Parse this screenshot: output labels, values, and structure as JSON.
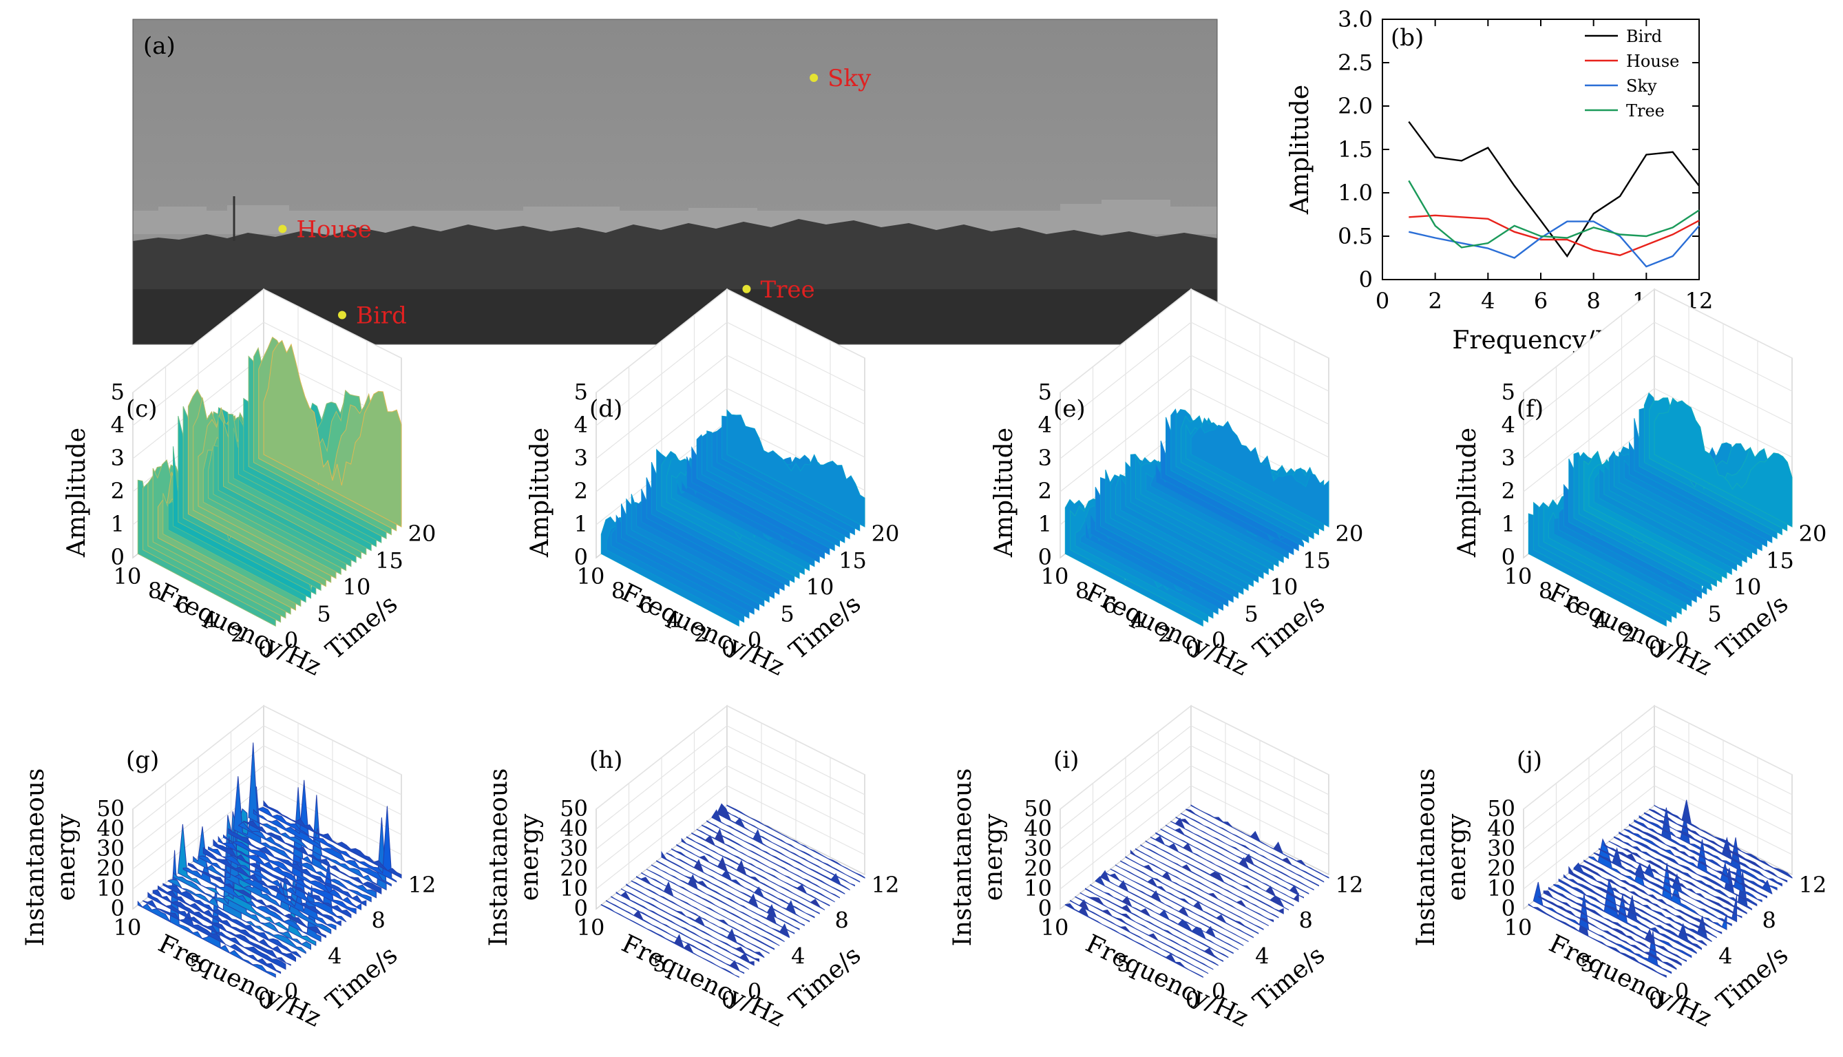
{
  "photo": {
    "label": "(a)",
    "points": [
      {
        "name": "Sky",
        "u": 0.628,
        "v": 0.18
      },
      {
        "name": "House",
        "u": 0.138,
        "v": 0.645
      },
      {
        "name": "Tree",
        "u": 0.566,
        "v": 0.83
      },
      {
        "name": "Bird",
        "u": 0.193,
        "v": 0.91
      }
    ],
    "colors": {
      "marker": "#e5e332",
      "label": "#e02020",
      "sky": "#8d8d8d",
      "trees": "#3a3a3a"
    }
  },
  "chart_data": [
    {
      "id": "b",
      "type": "line",
      "panel_label": "(b)",
      "xlabel": "Frequency/Hz",
      "ylabel": "Amplitude",
      "xlim": [
        0,
        12
      ],
      "ylim": [
        0,
        3.0
      ],
      "xticks": [
        "0",
        "2",
        "4",
        "6",
        "8",
        "10",
        "12"
      ],
      "yticks": [
        "0",
        "0.5",
        "1.0",
        "1.5",
        "2.0",
        "2.5",
        "3.0"
      ],
      "legend_position": "top-right",
      "x": [
        1,
        2,
        3,
        4,
        5,
        6,
        7,
        8,
        9,
        10,
        11,
        12
      ],
      "series": [
        {
          "name": "Bird",
          "color": "#000000",
          "values": [
            1.82,
            1.41,
            1.37,
            1.52,
            1.08,
            0.68,
            0.27,
            0.76,
            0.96,
            1.44,
            1.47,
            1.08
          ]
        },
        {
          "name": "House",
          "color": "#e8221b",
          "values": [
            0.72,
            0.74,
            0.72,
            0.7,
            0.55,
            0.46,
            0.46,
            0.34,
            0.28,
            0.4,
            0.52,
            0.68
          ]
        },
        {
          "name": "Sky",
          "color": "#2a6ed6",
          "values": [
            0.55,
            0.48,
            0.42,
            0.36,
            0.25,
            0.48,
            0.67,
            0.67,
            0.5,
            0.15,
            0.27,
            0.62
          ]
        },
        {
          "name": "Tree",
          "color": "#1b9a5a",
          "values": [
            1.14,
            0.62,
            0.37,
            0.42,
            0.62,
            0.5,
            0.48,
            0.6,
            0.52,
            0.5,
            0.6,
            0.8
          ]
        }
      ]
    },
    {
      "id": "c",
      "type": "surface3d",
      "panel_label": "(c)",
      "ylabel": "Amplitude",
      "xlabel": "Frequency/Hz",
      "zlabel": "Time/s",
      "value_axis_ticks": [
        "0",
        "1",
        "2",
        "3",
        "4",
        "5"
      ],
      "value_max": 5,
      "freq_ticks": [
        "10",
        "8",
        "6",
        "4",
        "2",
        "0"
      ],
      "time_ticks": [
        "0",
        "5",
        "10",
        "15",
        "20"
      ],
      "peak": 4.5
    },
    {
      "id": "d",
      "type": "surface3d",
      "panel_label": "(d)",
      "ylabel": "Amplitude",
      "xlabel": "Frequency/Hz",
      "zlabel": "Time/s",
      "value_axis_ticks": [
        "0",
        "1",
        "2",
        "3",
        "4",
        "5"
      ],
      "value_max": 5,
      "freq_ticks": [
        "10",
        "8",
        "6",
        "4",
        "2",
        "0"
      ],
      "time_ticks": [
        "0",
        "5",
        "10",
        "15",
        "20"
      ],
      "peak": 2.2
    },
    {
      "id": "e",
      "type": "surface3d",
      "panel_label": "(e)",
      "ylabel": "Amplitude",
      "xlabel": "Frequency/Hz",
      "zlabel": "Time/s",
      "value_axis_ticks": [
        "0",
        "1",
        "2",
        "3",
        "4",
        "5"
      ],
      "value_max": 5,
      "freq_ticks": [
        "10",
        "8",
        "6",
        "4",
        "2",
        "0"
      ],
      "time_ticks": [
        "0",
        "5",
        "10",
        "15",
        "20"
      ],
      "peak": 2.3
    },
    {
      "id": "f",
      "type": "surface3d",
      "panel_label": "(f)",
      "ylabel": "Amplitude",
      "xlabel": "Frequency/Hz",
      "zlabel": "Time/s",
      "value_axis_ticks": [
        "0",
        "1",
        "2",
        "3",
        "4",
        "5"
      ],
      "value_max": 5,
      "freq_ticks": [
        "10",
        "8",
        "6",
        "4",
        "2",
        "0"
      ],
      "time_ticks": [
        "0",
        "5",
        "10",
        "15",
        "20"
      ],
      "peak": 2.5
    },
    {
      "id": "g",
      "type": "surface3d",
      "panel_label": "(g)",
      "ylabel": "Instantaneous energy",
      "xlabel": "Frequency/Hz",
      "zlabel": "Time/s",
      "value_axis_ticks": [
        "0",
        "10",
        "20",
        "30",
        "40",
        "50"
      ],
      "value_max": 50,
      "freq_ticks": [
        "10",
        "5",
        "0"
      ],
      "time_ticks": [
        "0",
        "4",
        "8",
        "12"
      ],
      "peak": 50
    },
    {
      "id": "h",
      "type": "surface3d",
      "panel_label": "(h)",
      "ylabel": "Instantaneous energy",
      "xlabel": "Frequency/Hz",
      "zlabel": "Time/s",
      "value_axis_ticks": [
        "0",
        "10",
        "20",
        "30",
        "40",
        "50"
      ],
      "value_max": 50,
      "freq_ticks": [
        "10",
        "5",
        "0"
      ],
      "time_ticks": [
        "0",
        "4",
        "8",
        "12"
      ],
      "peak": 8
    },
    {
      "id": "i",
      "type": "surface3d",
      "panel_label": "(i)",
      "ylabel": "Instantaneous energy",
      "xlabel": "Frequency/Hz",
      "zlabel": "Time/s",
      "value_axis_ticks": [
        "0",
        "10",
        "20",
        "30",
        "40",
        "50"
      ],
      "value_max": 50,
      "freq_ticks": [
        "10",
        "5",
        "0"
      ],
      "time_ticks": [
        "0",
        "4",
        "8",
        "12"
      ],
      "peak": 6
    },
    {
      "id": "j",
      "type": "surface3d",
      "panel_label": "(j)",
      "ylabel": "Instantaneous energy",
      "xlabel": "Frequency/Hz",
      "zlabel": "Time/s",
      "value_axis_ticks": [
        "0",
        "10",
        "20",
        "30",
        "40",
        "50"
      ],
      "value_max": 50,
      "freq_ticks": [
        "10",
        "5",
        "0"
      ],
      "time_ticks": [
        "0",
        "4",
        "8",
        "12"
      ],
      "peak": 22
    }
  ]
}
